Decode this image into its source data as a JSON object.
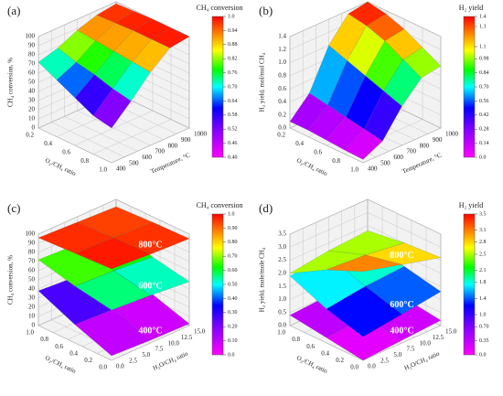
{
  "chart_data": [
    {
      "type": "surface3d",
      "label": "(a)",
      "colorbar_title": "CH₄ conversion",
      "cticks": [
        {
          "value": 0.4,
          "label": "0.40"
        },
        0.46,
        0.52,
        0.58,
        0.64,
        {
          "value": 0.7,
          "label": "0.70"
        },
        0.76,
        0.82,
        0.88,
        0.94,
        {
          "value": 1.0,
          "label": "1.0"
        }
      ],
      "zlabel": "CH₄ conversion, %",
      "zlim": [
        0,
        100
      ],
      "zticks": [
        0,
        10,
        20,
        30,
        40,
        50,
        60,
        70,
        80,
        90,
        100
      ],
      "xlabel": "O₂/CH₄ ratio",
      "xlim": [
        0.2,
        1.0
      ],
      "xticks": [
        0.2,
        0.4,
        0.6,
        0.8,
        {
          "value": 1.0,
          "label": "1.0"
        }
      ],
      "ylabel": "Temperature, °C",
      "ylim": [
        400,
        1000
      ],
      "yticks": [
        400,
        500,
        600,
        700,
        800,
        900,
        1000
      ],
      "x": [
        0.2,
        0.4,
        0.6,
        0.8,
        1.0
      ],
      "y": [
        400,
        550,
        700,
        850,
        1000
      ],
      "series": [
        {
          "values": [
            [
              72,
              62,
              52,
              42,
              38
            ],
            [
              78,
              72,
              68,
              62,
              58
            ],
            [
              88,
              86,
              84,
              82,
              80
            ],
            [
              95,
              96,
              97,
              97,
              97
            ],
            [
              98,
              99,
              100,
              100,
              100
            ]
          ]
        }
      ]
    },
    {
      "type": "surface3d",
      "label": "(b)",
      "colorbar_title": "H₂ yield",
      "cticks": [
        {
          "value": 0.0,
          "label": "0.0"
        },
        0.14,
        0.28,
        0.42,
        0.56,
        {
          "value": 0.7,
          "label": "0.70"
        },
        0.84,
        0.98,
        1.1,
        1.3,
        1.4
      ],
      "zlabel": "H₂ yield, mol/mol CH₄",
      "zlim": [
        0,
        1.4
      ],
      "zticks": [
        {
          "value": 0.0,
          "label": "0.0"
        },
        0.2,
        0.4,
        0.6,
        0.8,
        {
          "value": 1.0,
          "label": "1.0"
        },
        1.2,
        1.4
      ],
      "xlabel": "O₂/CH₄ ratio",
      "xlim": [
        0.2,
        1.0
      ],
      "xticks": [
        0.2,
        0.4,
        0.6,
        0.8,
        {
          "value": 1.0,
          "label": "1.0"
        }
      ],
      "ylabel": "Temperature, °C",
      "ylim": [
        400,
        1000
      ],
      "yticks": [
        400,
        500,
        600,
        700,
        800,
        900,
        1000
      ],
      "x": [
        0.2,
        0.4,
        0.6,
        0.8,
        1.0
      ],
      "y": [
        400,
        550,
        700,
        850,
        1000
      ],
      "series": [
        {
          "values": [
            [
              0.1,
              0.1,
              0.08,
              0.06,
              0.05
            ],
            [
              0.4,
              0.35,
              0.3,
              0.25,
              0.2
            ],
            [
              1.0,
              0.9,
              0.8,
              0.7,
              0.6
            ],
            [
              1.35,
              1.3,
              1.2,
              1.05,
              0.9
            ],
            [
              1.4,
              1.35,
              1.25,
              1.1,
              0.95
            ]
          ]
        }
      ]
    },
    {
      "type": "surface3d",
      "label": "(c)",
      "colorbar_title": "CH₄ conversion",
      "cticks": [
        {
          "value": 0.0,
          "label": "0.0"
        },
        {
          "value": 0.1,
          "label": "0.10"
        },
        {
          "value": 0.2,
          "label": "0.20"
        },
        {
          "value": 0.3,
          "label": "0.30"
        },
        {
          "value": 0.4,
          "label": "0.40"
        },
        {
          "value": 0.5,
          "label": "0.50"
        },
        {
          "value": 0.6,
          "label": "0.60"
        },
        {
          "value": 0.7,
          "label": "0.70"
        },
        {
          "value": 0.8,
          "label": "0.80"
        },
        {
          "value": 0.9,
          "label": "0.90"
        },
        {
          "value": 1.0,
          "label": "1.0"
        }
      ],
      "zlabel": "CH₄ conversion, %",
      "zlim": [
        0,
        100
      ],
      "zticks": [
        0,
        10,
        20,
        30,
        40,
        50,
        60,
        70,
        80,
        90,
        100
      ],
      "xlabel": "O₂/CH₄ ratio",
      "xlim": [
        1.0,
        0.0
      ],
      "xticks": [
        {
          "value": 1.0,
          "label": "1.0"
        },
        0.8,
        0.6,
        0.4,
        0.2,
        {
          "value": 0.0,
          "label": "0.0"
        }
      ],
      "ylabel": "H₂O/CH₄ ratio",
      "ylim": [
        0,
        15
      ],
      "yticks": [
        {
          "value": 0.0,
          "label": "0.0"
        },
        2.5,
        {
          "value": 5.0,
          "label": "5.0"
        },
        7.5,
        {
          "value": 10.0,
          "label": "10.0"
        },
        12.5,
        {
          "value": 15.0,
          "label": "15.0"
        }
      ],
      "x": [
        1.0,
        0.5,
        0.0
      ],
      "y": [
        0,
        7.5,
        15
      ],
      "series": [
        {
          "name": "800°C",
          "values": [
            [
              96,
              98,
              100
            ],
            [
              94,
              96,
              97
            ],
            [
              92,
              94,
              95
            ]
          ]
        },
        {
          "name": "600°C",
          "values": [
            [
              72,
              62,
              55
            ],
            [
              70,
              60,
              52
            ],
            [
              66,
              56,
              48
            ]
          ]
        },
        {
          "name": "400°C",
          "values": [
            [
              38,
              20,
              5
            ],
            [
              35,
              18,
              3
            ],
            [
              30,
              15,
              2
            ]
          ]
        }
      ]
    },
    {
      "type": "surface3d",
      "label": "(d)",
      "colorbar_title": "H₂ yield",
      "cticks": [
        {
          "value": 0.0,
          "label": "0.0"
        },
        0.35,
        {
          "value": 0.7,
          "label": "0.70"
        },
        {
          "value": 1.0,
          "label": "1.0"
        },
        1.4,
        1.8,
        2.1,
        2.5,
        2.8,
        3.1,
        3.5
      ],
      "zlabel": "H₂ yield, mole/mole CH₄",
      "zlim": [
        0,
        3.5
      ],
      "zticks": [
        {
          "value": 0.0,
          "label": "0.0"
        },
        0.5,
        {
          "value": 1.0,
          "label": "1.0"
        },
        1.5,
        {
          "value": 2.0,
          "label": "2.0"
        },
        2.5,
        {
          "value": 3.0,
          "label": "3.0"
        },
        3.5
      ],
      "xlabel": "O₂/CH₄ ratio",
      "xlim": [
        1.0,
        0.0
      ],
      "xticks": [
        {
          "value": 1.0,
          "label": "1.0"
        },
        0.8,
        0.6,
        0.4,
        0.2,
        {
          "value": 0.0,
          "label": "0.0"
        }
      ],
      "ylabel": "H₂O/CH₄ ratio",
      "ylim": [
        0,
        15
      ],
      "yticks": [
        {
          "value": 0.0,
          "label": "0.0"
        },
        2.5,
        {
          "value": 5.0,
          "label": "5.0"
        },
        7.5,
        {
          "value": 10.0,
          "label": "10.0"
        },
        12.5,
        {
          "value": 15.0,
          "label": "15.0"
        }
      ],
      "x": [
        1.0,
        0.5,
        0.0
      ],
      "y": [
        0,
        7.5,
        15
      ],
      "series": [
        {
          "name": "800°C",
          "values": [
            [
              2.0,
              2.8,
              3.4
            ],
            [
              2.2,
              2.7,
              3.0
            ],
            [
              2.3,
              2.5,
              2.6
            ]
          ]
        },
        {
          "name": "600°C",
          "values": [
            [
              1.9,
              1.3,
              0.9
            ],
            [
              2.0,
              1.5,
              1.1
            ],
            [
              2.0,
              1.6,
              1.3
            ]
          ]
        },
        {
          "name": "400°C",
          "values": [
            [
              0.4,
              0.2,
              0.0
            ],
            [
              0.5,
              0.3,
              0.1
            ],
            [
              0.6,
              0.4,
              0.2
            ]
          ]
        }
      ]
    }
  ]
}
